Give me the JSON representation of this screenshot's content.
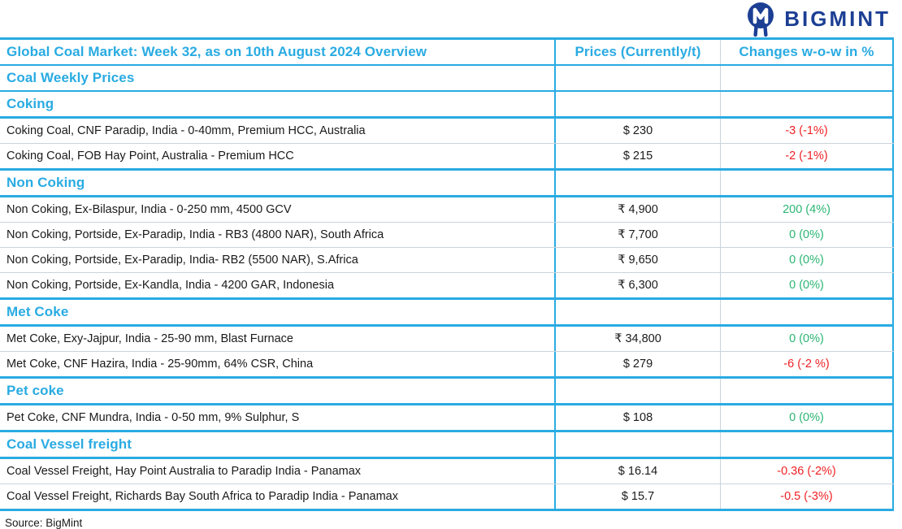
{
  "brand": {
    "name": "BIGMINT",
    "icon": "bigmint-owl-monogram",
    "color_navy": "#1C3F94"
  },
  "colors": {
    "accent_cyan": "#29ABE2",
    "negative_red": "#EF2125",
    "positive_green": "#2BB673",
    "row_divider_gray": "#CBD4DA"
  },
  "table": {
    "title": "Global Coal Market: Week 32, as on 10th August 2024 Overview",
    "columns": {
      "price": "Prices (Currently/t)",
      "change": "Changes w-o-w in %"
    },
    "subtitle": "Coal Weekly Prices",
    "sections": [
      {
        "label": "Coking",
        "rows": [
          {
            "desc": "Coking Coal, CNF Paradip, India - 0-40mm, Premium HCC, Australia",
            "price": "$ 230",
            "change": "-3 (-1%)",
            "trend": "down"
          },
          {
            "desc": "Coking Coal, FOB Hay Point, Australia - Premium HCC",
            "price": "$ 215",
            "change": "-2 (-1%)",
            "trend": "down"
          }
        ]
      },
      {
        "label": "Non Coking",
        "rows": [
          {
            "desc": "Non Coking, Ex-Bilaspur, India - 0-250 mm, 4500 GCV",
            "price": "₹ 4,900",
            "change": "200 (4%)",
            "trend": "up"
          },
          {
            "desc": "Non Coking, Portside, Ex-Paradip, India - RB3 (4800 NAR), South Africa",
            "price": "₹ 7,700",
            "change": "0 (0%)",
            "trend": "up"
          },
          {
            "desc": "Non Coking, Portside, Ex-Paradip, India- RB2 (5500 NAR), S.Africa",
            "price": "₹ 9,650",
            "change": "0 (0%)",
            "trend": "up"
          },
          {
            "desc": "Non Coking, Portside, Ex-Kandla, India - 4200 GAR, Indonesia",
            "price": "₹ 6,300",
            "change": "0 (0%)",
            "trend": "up"
          }
        ]
      },
      {
        "label": "Met Coke",
        "rows": [
          {
            "desc": "Met Coke, Exy-Jajpur, India - 25-90 mm, Blast Furnace",
            "price": "₹ 34,800",
            "change": "0 (0%)",
            "trend": "up"
          },
          {
            "desc": "Met Coke, CNF Hazira, India - 25-90mm, 64% CSR, China",
            "price": "$ 279",
            "change": "-6 (-2 %)",
            "trend": "down"
          }
        ]
      },
      {
        "label": "Pet coke",
        "rows": [
          {
            "desc": "Pet Coke, CNF Mundra, India - 0-50 mm, 9% Sulphur, S",
            "price": "$ 108",
            "change": "0 (0%)",
            "trend": "up"
          }
        ]
      },
      {
        "label": "Coal Vessel freight",
        "rows": [
          {
            "desc": "Coal Vessel Freight, Hay Point Australia to Paradip India - Panamax",
            "price": "$ 16.14",
            "change": "-0.36 (-2%)",
            "trend": "down"
          },
          {
            "desc": "Coal Vessel Freight, Richards Bay South Africa to Paradip India - Panamax",
            "price": "$ 15.7",
            "change": "-0.5 (-3%)",
            "trend": "down"
          }
        ]
      }
    ]
  },
  "footer": {
    "source": "Source: BigMint"
  }
}
